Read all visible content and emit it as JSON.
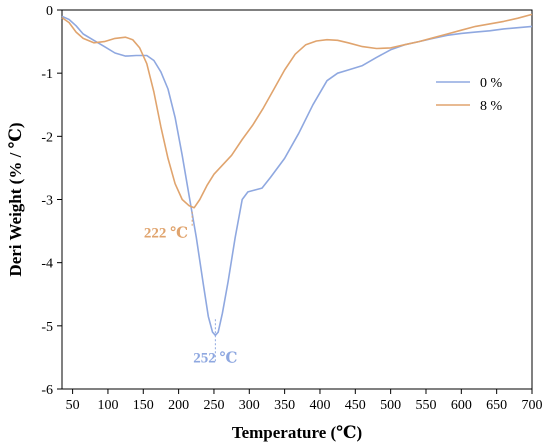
{
  "chart_data": {
    "type": "line",
    "xlabel": "Temperature (℃)",
    "ylabel": "Deri Weight (% / ℃)",
    "xlim": [
      35,
      700
    ],
    "ylim": [
      -6,
      0
    ],
    "x_ticks": [
      50,
      100,
      150,
      200,
      250,
      300,
      350,
      400,
      450,
      500,
      550,
      600,
      650,
      700
    ],
    "y_ticks": [
      0,
      -1,
      -2,
      -3,
      -4,
      -5,
      -6
    ],
    "grid": false,
    "legend_position": "top-right",
    "series": [
      {
        "name": "0 %",
        "color": "#8fa8e0",
        "points": [
          [
            35,
            -0.1
          ],
          [
            45,
            -0.15
          ],
          [
            55,
            -0.25
          ],
          [
            65,
            -0.38
          ],
          [
            80,
            -0.48
          ],
          [
            95,
            -0.58
          ],
          [
            110,
            -0.68
          ],
          [
            125,
            -0.73
          ],
          [
            140,
            -0.72
          ],
          [
            155,
            -0.72
          ],
          [
            165,
            -0.8
          ],
          [
            175,
            -0.98
          ],
          [
            185,
            -1.25
          ],
          [
            195,
            -1.7
          ],
          [
            205,
            -2.3
          ],
          [
            215,
            -2.95
          ],
          [
            225,
            -3.6
          ],
          [
            235,
            -4.35
          ],
          [
            242,
            -4.85
          ],
          [
            248,
            -5.1
          ],
          [
            252,
            -5.15
          ],
          [
            256,
            -5.1
          ],
          [
            262,
            -4.8
          ],
          [
            270,
            -4.3
          ],
          [
            280,
            -3.6
          ],
          [
            290,
            -3.0
          ],
          [
            298,
            -2.88
          ],
          [
            308,
            -2.85
          ],
          [
            318,
            -2.82
          ],
          [
            330,
            -2.65
          ],
          [
            350,
            -2.35
          ],
          [
            370,
            -1.95
          ],
          [
            390,
            -1.5
          ],
          [
            410,
            -1.12
          ],
          [
            425,
            -1.0
          ],
          [
            440,
            -0.95
          ],
          [
            460,
            -0.88
          ],
          [
            480,
            -0.75
          ],
          [
            500,
            -0.63
          ],
          [
            520,
            -0.55
          ],
          [
            540,
            -0.5
          ],
          [
            560,
            -0.45
          ],
          [
            580,
            -0.4
          ],
          [
            600,
            -0.37
          ],
          [
            620,
            -0.35
          ],
          [
            640,
            -0.33
          ],
          [
            660,
            -0.3
          ],
          [
            680,
            -0.28
          ],
          [
            700,
            -0.26
          ]
        ]
      },
      {
        "name": "8 %",
        "color": "#e0a46e",
        "points": [
          [
            35,
            -0.12
          ],
          [
            45,
            -0.2
          ],
          [
            55,
            -0.35
          ],
          [
            65,
            -0.45
          ],
          [
            80,
            -0.52
          ],
          [
            95,
            -0.5
          ],
          [
            110,
            -0.45
          ],
          [
            125,
            -0.43
          ],
          [
            135,
            -0.47
          ],
          [
            145,
            -0.6
          ],
          [
            155,
            -0.85
          ],
          [
            165,
            -1.3
          ],
          [
            175,
            -1.85
          ],
          [
            185,
            -2.35
          ],
          [
            195,
            -2.75
          ],
          [
            205,
            -3.0
          ],
          [
            215,
            -3.1
          ],
          [
            222,
            -3.13
          ],
          [
            230,
            -3.0
          ],
          [
            240,
            -2.78
          ],
          [
            250,
            -2.6
          ],
          [
            260,
            -2.48
          ],
          [
            275,
            -2.3
          ],
          [
            290,
            -2.05
          ],
          [
            305,
            -1.82
          ],
          [
            320,
            -1.55
          ],
          [
            335,
            -1.25
          ],
          [
            350,
            -0.95
          ],
          [
            365,
            -0.7
          ],
          [
            380,
            -0.55
          ],
          [
            395,
            -0.49
          ],
          [
            410,
            -0.47
          ],
          [
            425,
            -0.48
          ],
          [
            440,
            -0.52
          ],
          [
            460,
            -0.58
          ],
          [
            480,
            -0.61
          ],
          [
            500,
            -0.6
          ],
          [
            520,
            -0.55
          ],
          [
            540,
            -0.5
          ],
          [
            560,
            -0.44
          ],
          [
            580,
            -0.38
          ],
          [
            600,
            -0.32
          ],
          [
            620,
            -0.26
          ],
          [
            640,
            -0.22
          ],
          [
            660,
            -0.18
          ],
          [
            680,
            -0.13
          ],
          [
            700,
            -0.07
          ]
        ]
      }
    ],
    "annotations": [
      {
        "text": "222 ℃",
        "x": 222,
        "y": -3.13,
        "series": 1
      },
      {
        "text": "252 ℃",
        "x": 252,
        "y": -5.15,
        "series": 0
      }
    ]
  }
}
